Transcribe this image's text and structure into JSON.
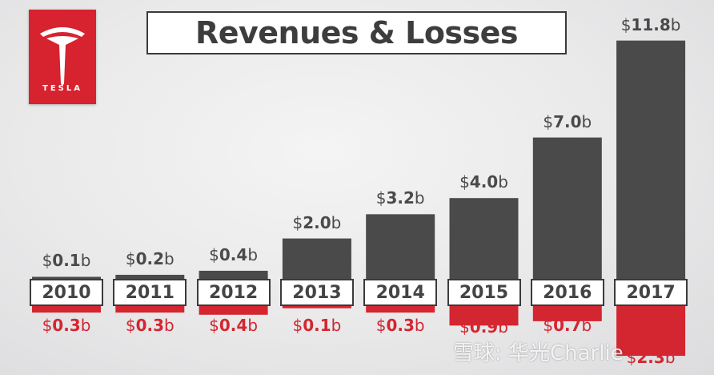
{
  "logo": {
    "wordmark": "TESLA"
  },
  "title": "Revenues & Losses",
  "watermark": "雪球: 华光Charlie",
  "colors": {
    "revenue": "#4a4a4b",
    "loss": "#d42630",
    "brand": "#d7232f"
  },
  "chart_data": {
    "type": "bar",
    "title": "Revenues & Losses",
    "categories": [
      "2010",
      "2011",
      "2012",
      "2013",
      "2014",
      "2015",
      "2016",
      "2017"
    ],
    "series": [
      {
        "name": "",
        "values": [
          0.1,
          0.2,
          0.4,
          2.0,
          3.2,
          4.0,
          7.0,
          11.8
        ]
      },
      {
        "name": "",
        "values": [
          0.3,
          0.3,
          0.4,
          0.1,
          0.3,
          0.9,
          0.7,
          2.3
        ]
      }
    ],
    "revenue_labels": [
      "0.1",
      "0.2",
      "0.4",
      "2.0",
      "3.2",
      "4.0",
      "7.0",
      "11.8"
    ],
    "loss_labels": [
      "0.3",
      "0.3",
      "0.4",
      "0.1",
      "0.3",
      "0.9",
      "0.7",
      "2.3"
    ],
    "label_prefix": "$",
    "label_suffix": "b",
    "legend": "none",
    "grid": false
  }
}
